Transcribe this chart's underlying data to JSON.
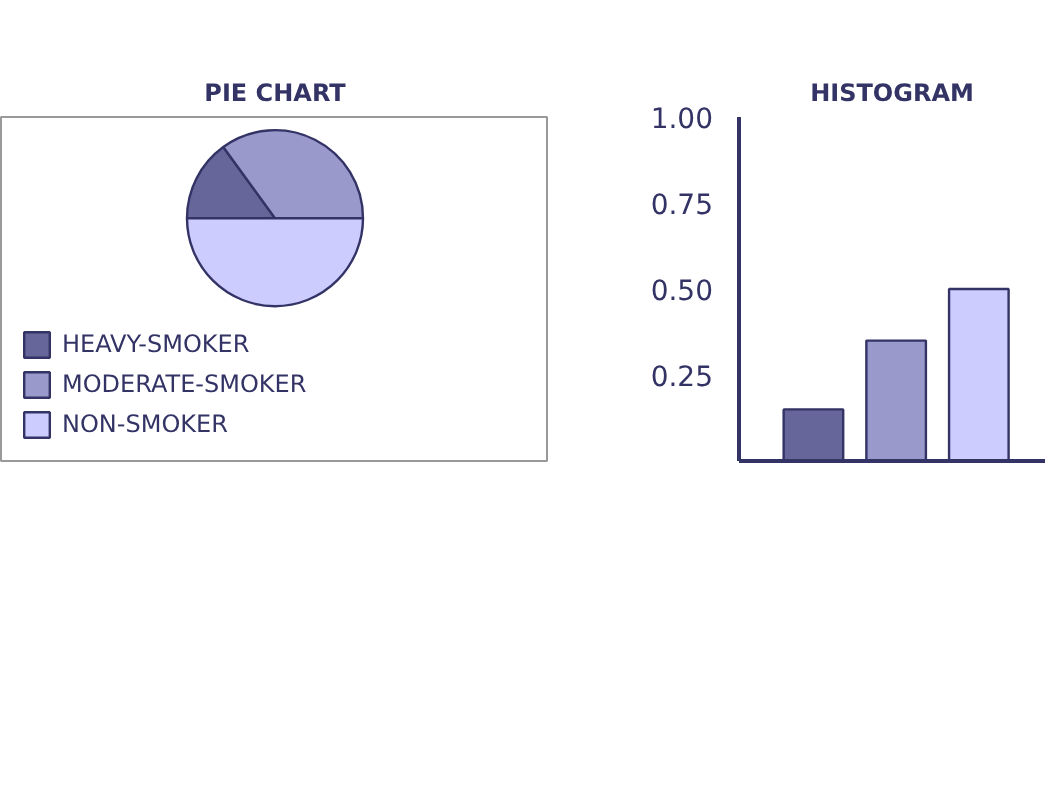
{
  "chart_data": [
    {
      "type": "pie",
      "title": "PIE CHART",
      "categories": [
        "HEAVY-SMOKER",
        "MODERATE-SMOKER",
        "NON-SMOKER"
      ],
      "values": [
        15,
        35,
        50
      ],
      "colors": [
        "#66669a",
        "#9999cc",
        "#ccccff"
      ],
      "legend": "bottom"
    },
    {
      "type": "bar",
      "title": "HISTOGRAM",
      "categories": [
        null,
        null,
        null
      ],
      "values": [
        0.15,
        0.35,
        0.5
      ],
      "colors": [
        "#66669a",
        "#9999cc",
        "#ccccff"
      ],
      "ylim": [
        0,
        1
      ],
      "yticks": [
        {
          "value": 0.25,
          "label": "0.25"
        },
        {
          "value": 0.5,
          "label": "0.50"
        },
        {
          "value": 0.75,
          "label": "0.75"
        },
        {
          "value": 1,
          "label": "1.00"
        }
      ],
      "tick_labels": "y",
      "grid": false
    }
  ]
}
